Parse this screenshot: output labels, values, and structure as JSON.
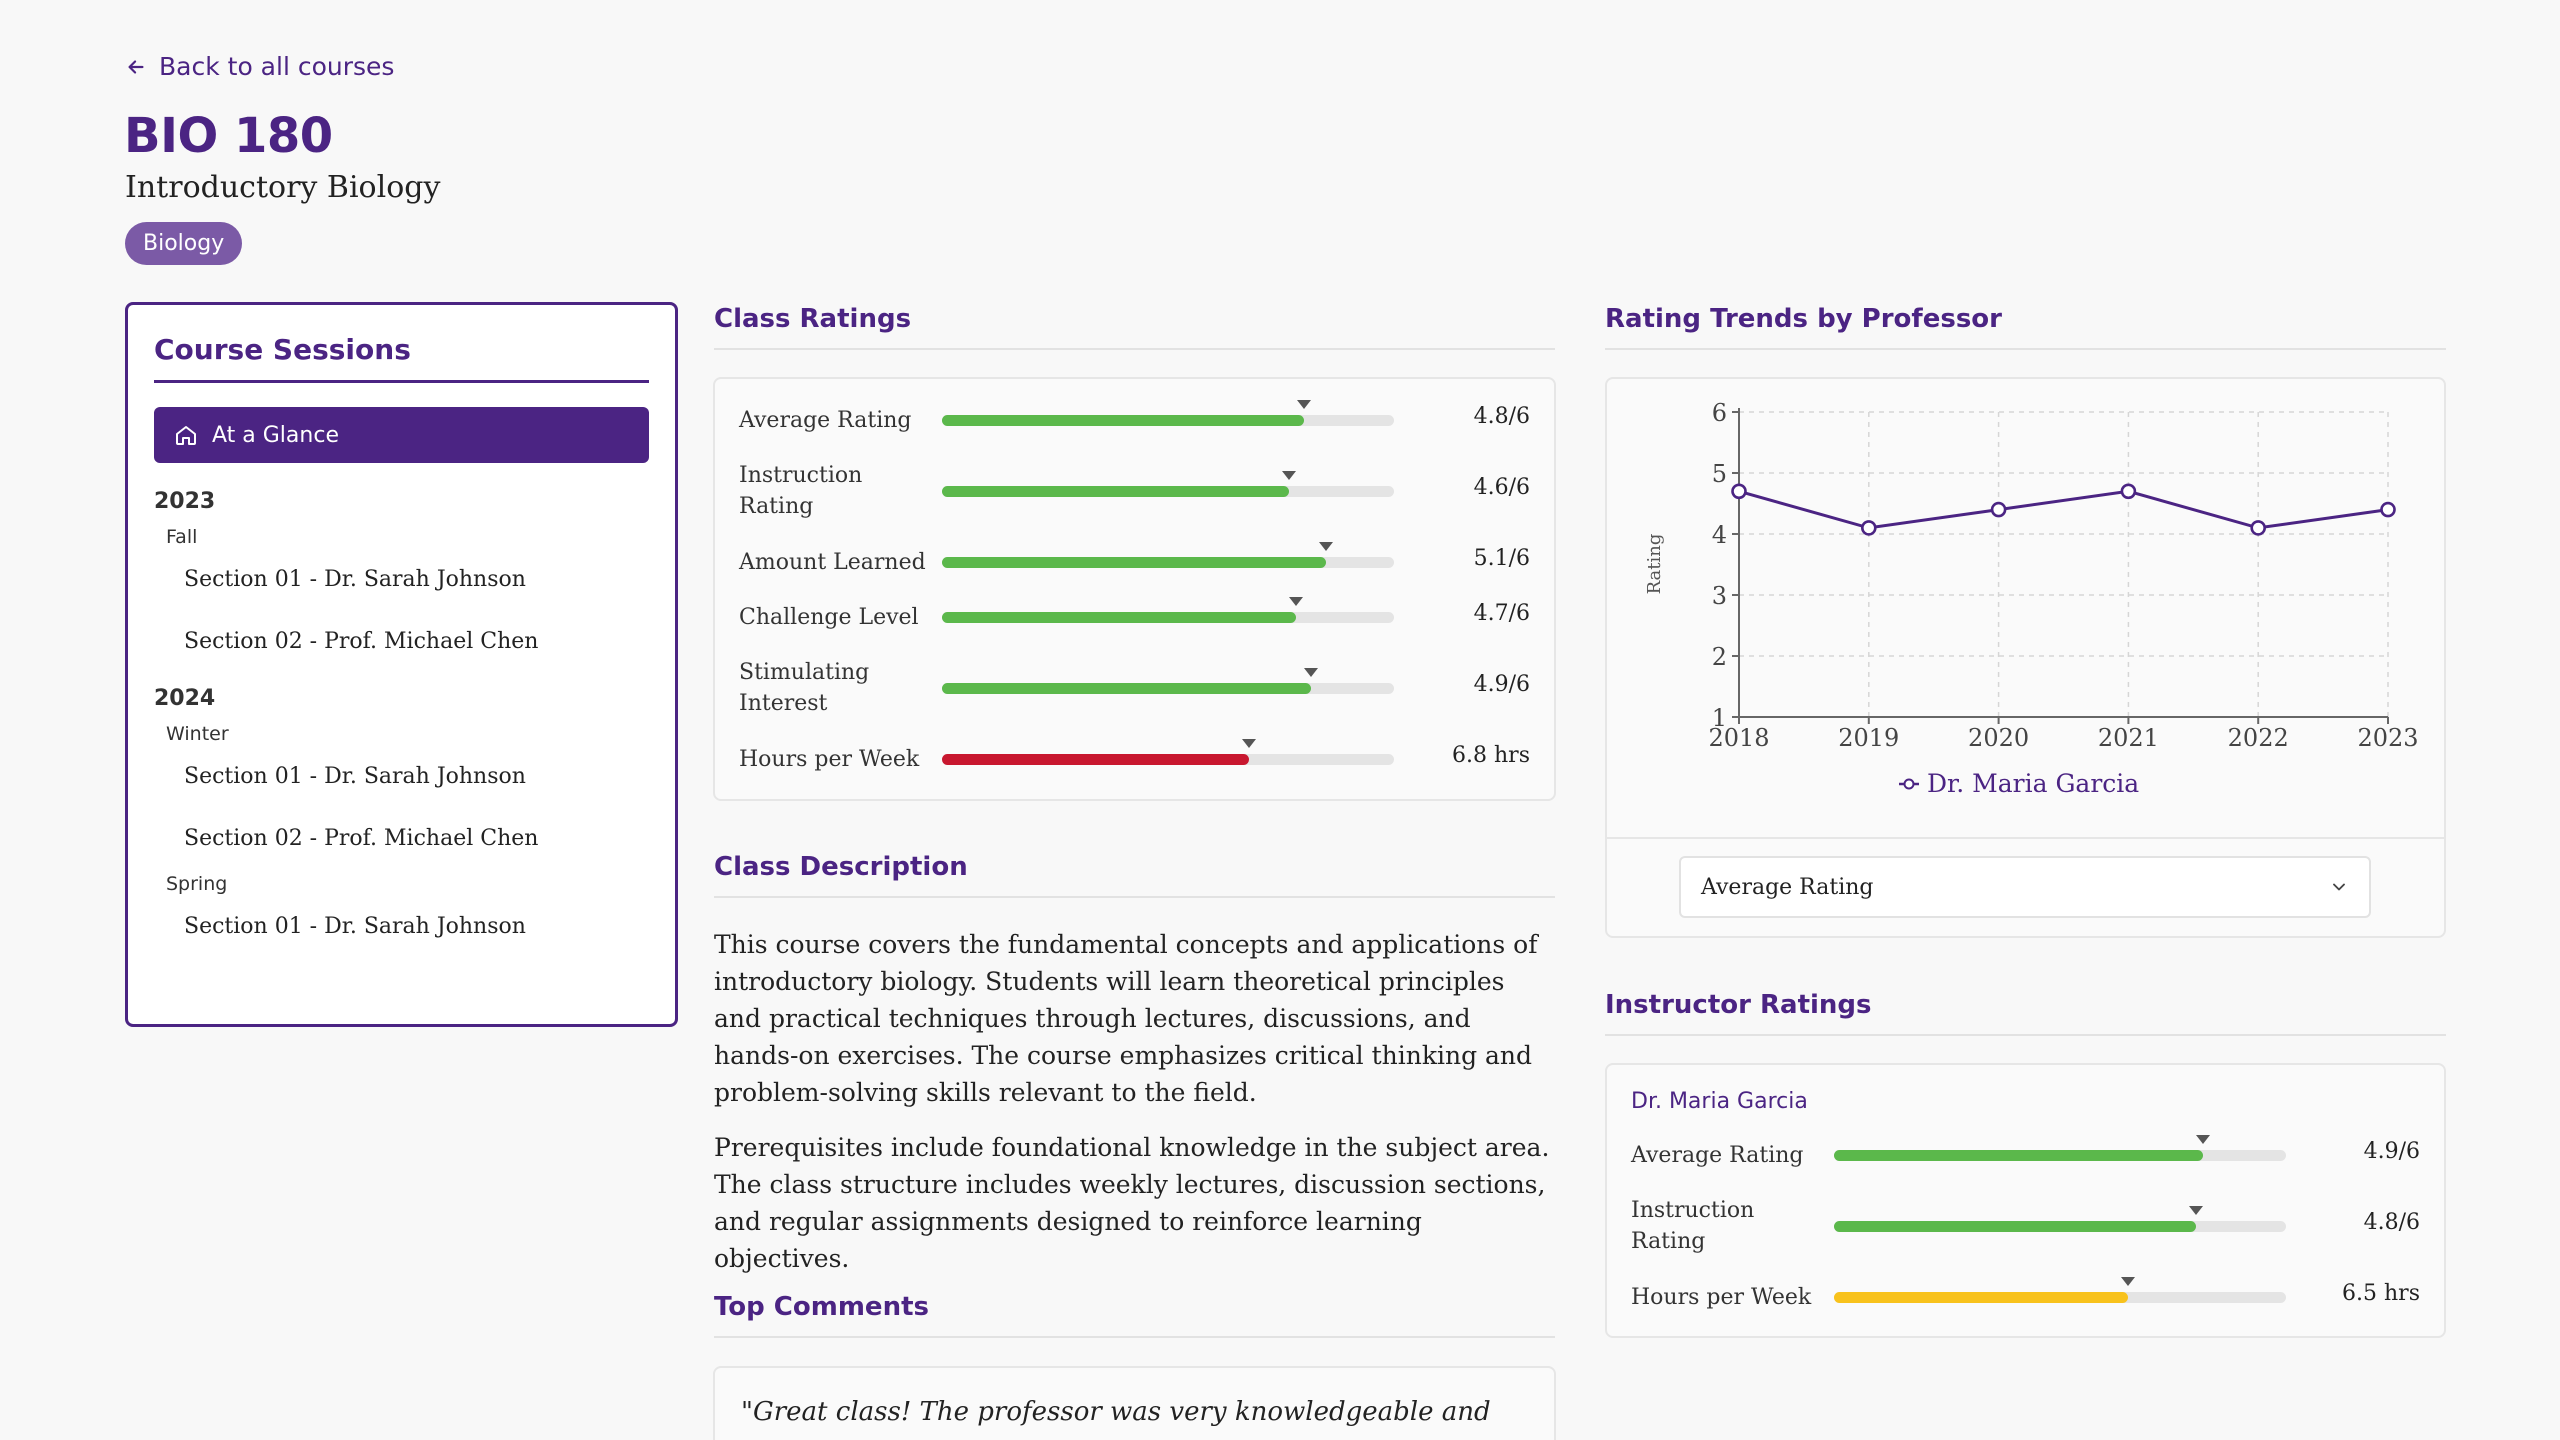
{
  "nav": {
    "back_label": "Back to all courses"
  },
  "course": {
    "code": "BIO 180",
    "name": "Introductory Biology",
    "department": "Biology"
  },
  "sidebar": {
    "title": "Course Sessions",
    "glance_label": "At a Glance",
    "years": [
      {
        "year": "2023",
        "terms": [
          {
            "term": "Fall",
            "sections": [
              "Section 01 - Dr. Sarah Johnson",
              "Section 02 - Prof. Michael Chen"
            ]
          }
        ]
      },
      {
        "year": "2024",
        "terms": [
          {
            "term": "Winter",
            "sections": [
              "Section 01 - Dr. Sarah Johnson",
              "Section 02 - Prof. Michael Chen"
            ]
          },
          {
            "term": "Spring",
            "sections": [
              "Section 01 - Dr. Sarah Johnson"
            ]
          }
        ]
      }
    ]
  },
  "class_ratings": {
    "title": "Class Ratings",
    "items": [
      {
        "label": "Average Rating",
        "value": "4.8/6",
        "fraction": 0.8,
        "color": "#5bb84b"
      },
      {
        "label": "Instruction Rating",
        "value": "4.6/6",
        "fraction": 0.767,
        "color": "#5bb84b"
      },
      {
        "label": "Amount Learned",
        "value": "5.1/6",
        "fraction": 0.85,
        "color": "#5bb84b"
      },
      {
        "label": "Challenge Level",
        "value": "4.7/6",
        "fraction": 0.783,
        "color": "#5bb84b"
      },
      {
        "label": "Stimulating Interest",
        "value": "4.9/6",
        "fraction": 0.817,
        "color": "#5bb84b"
      },
      {
        "label": "Hours per Week",
        "value": "6.8 hrs",
        "fraction": 0.68,
        "color": "#c8172f"
      }
    ]
  },
  "description": {
    "title": "Class Description",
    "paragraphs": [
      "This course covers the fundamental concepts and applications of introductory biology. Students will learn theoretical principles and practical techniques through lectures, discussions, and hands-on exercises. The course emphasizes critical thinking and problem-solving skills relevant to the field.",
      "Prerequisites include foundational knowledge in the subject area. The class structure includes weekly lectures, discussion sections, and regular assignments designed to reinforce learning objectives."
    ]
  },
  "comments": {
    "title": "Top Comments",
    "first": "\"Great class! The professor was very knowledgeable and the"
  },
  "trends": {
    "title": "Rating Trends by Professor",
    "selected_metric": "Average Rating"
  },
  "chart_data": {
    "type": "line",
    "x": [
      2018,
      2019,
      2020,
      2021,
      2022,
      2023
    ],
    "series": [
      {
        "name": "Dr. Maria Garcia",
        "values": [
          4.7,
          4.1,
          4.4,
          4.7,
          4.1,
          4.4
        ],
        "color": "#4b2483"
      }
    ],
    "ylabel": "Rating",
    "xlabel": "",
    "ylim": [
      1,
      6
    ],
    "yticks": [
      1,
      2,
      3,
      4,
      5,
      6
    ],
    "grid": true,
    "legend": "bottom"
  },
  "instructor_ratings": {
    "title": "Instructor Ratings",
    "name": "Dr. Maria Garcia",
    "items": [
      {
        "label": "Average Rating",
        "value": "4.9/6",
        "fraction": 0.817,
        "color": "#5bb84b"
      },
      {
        "label": "Instruction Rating",
        "value": "4.8/6",
        "fraction": 0.8,
        "color": "#5bb84b"
      },
      {
        "label": "Hours per Week",
        "value": "6.5 hrs",
        "fraction": 0.65,
        "color": "#f8c21c"
      }
    ]
  }
}
